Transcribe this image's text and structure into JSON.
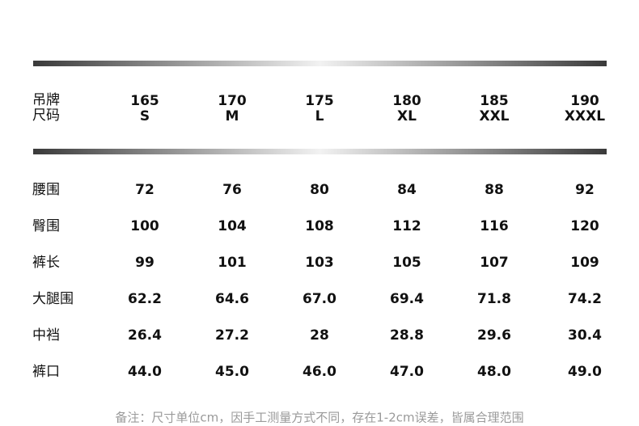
{
  "table": {
    "header_label": [
      "吊牌",
      "尺码"
    ],
    "columns": [
      {
        "height": "165",
        "size": "S"
      },
      {
        "height": "170",
        "size": "M"
      },
      {
        "height": "175",
        "size": "L"
      },
      {
        "height": "180",
        "size": "XL"
      },
      {
        "height": "185",
        "size": "XXL"
      },
      {
        "height": "190",
        "size": "XXXL"
      }
    ],
    "rows": [
      {
        "label": "腰围",
        "values": [
          "72",
          "76",
          "80",
          "84",
          "88",
          "92"
        ]
      },
      {
        "label": "臀围",
        "values": [
          "100",
          "104",
          "108",
          "112",
          "116",
          "120"
        ]
      },
      {
        "label": "裤长",
        "values": [
          "99",
          "101",
          "103",
          "105",
          "107",
          "109"
        ]
      },
      {
        "label": "大腿围",
        "values": [
          "62.2",
          "64.6",
          "67.0",
          "69.4",
          "71.8",
          "74.2"
        ]
      },
      {
        "label": "中裆",
        "values": [
          "26.4",
          "27.2",
          "28",
          "28.8",
          "29.6",
          "30.4"
        ]
      },
      {
        "label": "裤口",
        "values": [
          "44.0",
          "45.0",
          "46.0",
          "47.0",
          "48.0",
          "49.0"
        ]
      }
    ]
  },
  "footer": {
    "note": "备注：尺寸单位cm，因手工测量方式不同，存在1-2cm误差，皆属合理范围"
  }
}
